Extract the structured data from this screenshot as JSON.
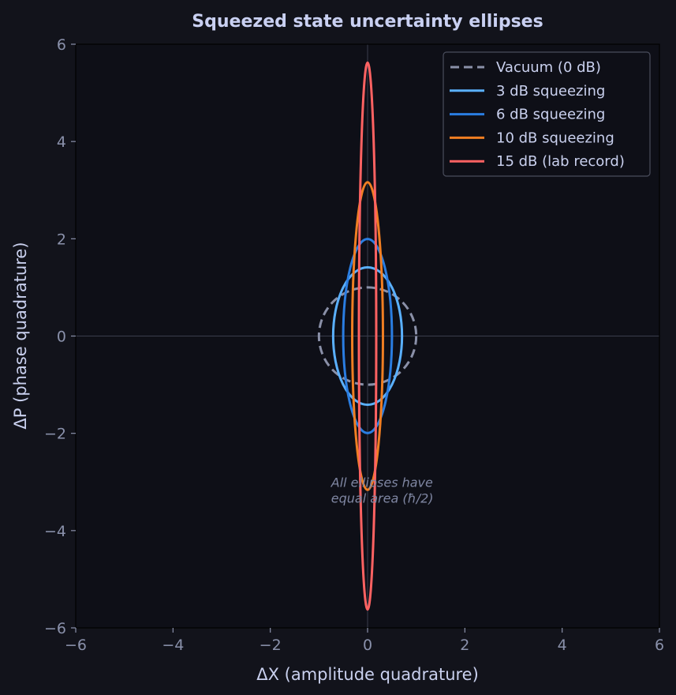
{
  "chart_data": {
    "type": "line",
    "title": "Squeezed state uncertainty ellipses",
    "xlabel": "ΔX  (amplitude quadrature)",
    "ylabel": "ΔP  (phase quadrature)",
    "xlim": [
      -6,
      6
    ],
    "ylim": [
      -6,
      6
    ],
    "xticks": [
      -6,
      -4,
      -2,
      0,
      2,
      4,
      6
    ],
    "yticks": [
      -6,
      -4,
      -2,
      0,
      2,
      4,
      6
    ],
    "grid": false,
    "zero_lines": true,
    "legend_position": "top-right",
    "series": [
      {
        "name": "Vacuum (0 dB)",
        "semi_x": 1.0,
        "semi_y": 1.0,
        "color": "#8a90a8",
        "dashed": true
      },
      {
        "name": "3 dB squeezing",
        "semi_x": 0.708,
        "semi_y": 1.413,
        "color": "#5ab0ff",
        "dashed": false
      },
      {
        "name": "6 dB squeezing",
        "semi_x": 0.501,
        "semi_y": 1.995,
        "color": "#2a7de1",
        "dashed": false
      },
      {
        "name": "10 dB squeezing",
        "semi_x": 0.316,
        "semi_y": 3.162,
        "color": "#f07e22",
        "dashed": false
      },
      {
        "name": "15 dB (lab record)",
        "semi_x": 0.178,
        "semi_y": 5.623,
        "color": "#ff6262",
        "dashed": false
      }
    ],
    "annotation": {
      "lines": [
        "All ellipses have",
        "equal area (ħ/2)"
      ],
      "x": -0.75,
      "y": -3.1
    }
  },
  "colors": {
    "figure_bg": "#12131b",
    "axes_bg": "#0e0f17",
    "text": "#c9d0ee",
    "tick": "#8a91ab"
  }
}
